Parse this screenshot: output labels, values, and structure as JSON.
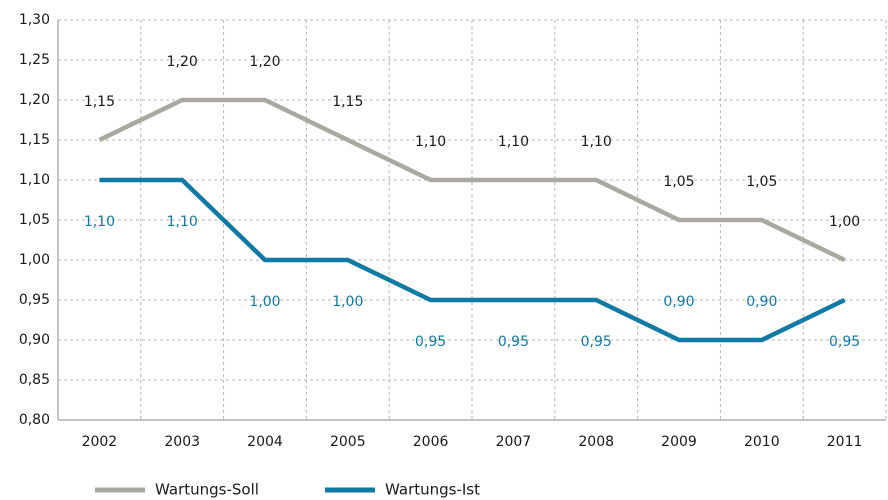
{
  "chart_data": {
    "type": "line",
    "categories": [
      "2002",
      "2003",
      "2004",
      "2005",
      "2006",
      "2007",
      "2008",
      "2009",
      "2010",
      "2011"
    ],
    "series": [
      {
        "name": "Wartungs-Soll",
        "color": "#a9a9a1",
        "values": [
          1.15,
          1.2,
          1.2,
          1.15,
          1.1,
          1.1,
          1.1,
          1.05,
          1.05,
          1.0
        ],
        "value_labels": [
          "1,15",
          "1,20",
          "1,20",
          "1,15",
          "1,10",
          "1,10",
          "1,10",
          "1,05",
          "1,05",
          "1,00"
        ]
      },
      {
        "name": "Wartungs-Ist",
        "color": "#0f7aa5",
        "values": [
          1.1,
          1.1,
          1.0,
          1.0,
          0.95,
          0.95,
          0.95,
          0.9,
          0.9,
          0.95
        ],
        "value_labels": [
          "1,10",
          "1,10",
          "1,00",
          "1,00",
          "0,95",
          "0,95",
          "0,95",
          "0,90",
          "0,90",
          "0,95"
        ]
      }
    ],
    "ylim": [
      0.8,
      1.3
    ],
    "yticks": [
      {
        "value": 0.8,
        "label": "0,80"
      },
      {
        "value": 0.85,
        "label": "0,85"
      },
      {
        "value": 0.9,
        "label": "0,90"
      },
      {
        "value": 0.95,
        "label": "0,95"
      },
      {
        "value": 1.0,
        "label": "1,00"
      },
      {
        "value": 1.05,
        "label": "1,05"
      },
      {
        "value": 1.1,
        "label": "1,10"
      },
      {
        "value": 1.15,
        "label": "1,15"
      },
      {
        "value": 1.2,
        "label": "1,20"
      },
      {
        "value": 1.25,
        "label": "1,25"
      },
      {
        "value": 1.3,
        "label": "1,30"
      }
    ],
    "grid": true,
    "legend": "bottom"
  }
}
